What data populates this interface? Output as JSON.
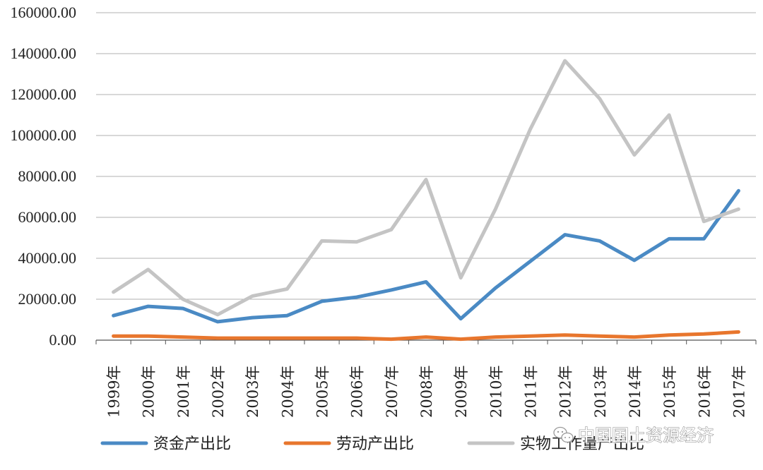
{
  "chart_data": {
    "type": "line",
    "title": "",
    "xlabel": "",
    "ylabel": "",
    "categories": [
      "1999年",
      "2000年",
      "2001年",
      "2002年",
      "2003年",
      "2004年",
      "2005年",
      "2006年",
      "2007年",
      "2008年",
      "2009年",
      "2010年",
      "2011年",
      "2012年",
      "2013年",
      "2014年",
      "2015年",
      "2016年",
      "2017年"
    ],
    "yticks": [
      "0.00",
      "20000.00",
      "40000.00",
      "60000.00",
      "80000.00",
      "100000.00",
      "120000.00",
      "140000.00",
      "160000.00"
    ],
    "ylim": [
      0,
      160000
    ],
    "grid": true,
    "legend_position": "bottom",
    "series": [
      {
        "name": "资金产出比",
        "color": "#4a8ac4",
        "values": [
          12000,
          16500,
          15500,
          9000,
          11000,
          12000,
          19000,
          21000,
          24500,
          28500,
          10500,
          25500,
          38500,
          51500,
          48500,
          39000,
          49500,
          49500,
          73000
        ]
      },
      {
        "name": "劳动产出比",
        "color": "#e8762d",
        "values": [
          2000,
          2000,
          1500,
          1000,
          1000,
          1000,
          1000,
          1000,
          500,
          1500,
          500,
          1500,
          2000,
          2500,
          2000,
          1500,
          2500,
          3000,
          4000
        ]
      },
      {
        "name": "实物工作量产出比",
        "color": "#c4c4c4",
        "values": [
          23500,
          34500,
          20000,
          12500,
          21500,
          25000,
          48500,
          48000,
          54000,
          78500,
          30500,
          64000,
          103000,
          136500,
          118000,
          90500,
          110000,
          58000,
          64000
        ]
      }
    ]
  },
  "watermark": {
    "icon": "wechat-icon",
    "text": "中国国土资源经济"
  }
}
